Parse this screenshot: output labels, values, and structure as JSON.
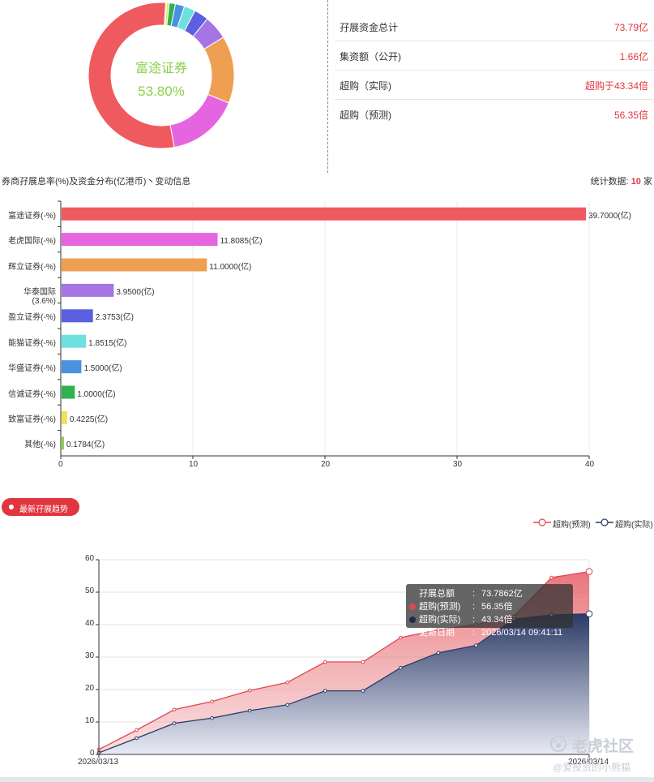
{
  "donut": {
    "center_name": "富途证券",
    "center_pct": "53.80%",
    "slices": [
      {
        "name": "富途证券",
        "value": 39.7,
        "color": "#ee5a5e"
      },
      {
        "name": "老虎国际",
        "value": 11.8085,
        "color": "#e565e0"
      },
      {
        "name": "辉立证券",
        "value": 11.0,
        "color": "#ee9f52"
      },
      {
        "name": "华泰国际",
        "value": 3.95,
        "color": "#a674e4"
      },
      {
        "name": "盈立证券",
        "value": 2.3753,
        "color": "#5c5fe0"
      },
      {
        "name": "能猫证券",
        "value": 1.8515,
        "color": "#6fe0e0"
      },
      {
        "name": "华盛证券",
        "value": 1.5,
        "color": "#4a92e0"
      },
      {
        "name": "信诚证券",
        "value": 1.0,
        "color": "#2fb24f"
      },
      {
        "name": "致富证券",
        "value": 0.4225,
        "color": "#ece35a"
      },
      {
        "name": "其他",
        "value": 0.1784,
        "color": "#8cd14b"
      }
    ]
  },
  "summary": [
    {
      "label": "孖展资金总计",
      "value": "73.79亿"
    },
    {
      "label": "集资额（公开)",
      "value": "1.66亿"
    },
    {
      "label": "超购（实际)",
      "value": "超购于43.34倍"
    },
    {
      "label": "超购（预测)",
      "value": "56.35倍"
    }
  ],
  "bar_section": {
    "title": "券商孖展息率(%)及资金分布(亿港币)丶变动信息",
    "stat_prefix": "统计数据: ",
    "stat_count": "10",
    "stat_suffix": " 家"
  },
  "trend": {
    "pill_label": "最新孖展趋势",
    "legend_predicted": "超购(预测)",
    "legend_actual": "超购(实际)",
    "tooltip": {
      "row1_key": "孖展总额",
      "row1_val": "73.7862亿",
      "row2_key": "超购(预测)",
      "row2_val": "56.35倍",
      "row3_key": "超购(实际)",
      "row3_val": "43.34倍",
      "row4_key": "更新日期",
      "row4_val": "2026/03/14 09:41:11",
      "colon": ":"
    }
  },
  "watermark": {
    "brand": "老虎社区",
    "handle": "@爱投资的小熊猫"
  },
  "chart_data": [
    {
      "type": "bar",
      "orientation": "horizontal",
      "categories": [
        "富途证券(-%)",
        "老虎国际(-%)",
        "辉立证券(-%)",
        "华泰国际(3.6%)",
        "盈立证券(-%)",
        "能猫证券(-%)",
        "华盛证券(-%)",
        "信诚证券(-%)",
        "致富证券(-%)",
        "其他(-%)"
      ],
      "values": [
        39.7,
        11.8085,
        11.0,
        3.95,
        2.3753,
        1.8515,
        1.5,
        1.0,
        0.4225,
        0.1784
      ],
      "value_labels": [
        "39.7000(亿)",
        "11.8085(亿)",
        "11.0000(亿)",
        "3.9500(亿)",
        "2.3753(亿)",
        "1.8515(亿)",
        "1.5000(亿)",
        "1.0000(亿)",
        "0.4225(亿)",
        "0.1784(亿)"
      ],
      "colors": [
        "#ee5a5e",
        "#e565e0",
        "#ee9f52",
        "#a674e4",
        "#5c5fe0",
        "#6fe0e0",
        "#4a92e0",
        "#2fb24f",
        "#ece35a",
        "#8cd14b"
      ],
      "xlim": [
        0,
        40
      ],
      "xticks": [
        0,
        10,
        20,
        30,
        40
      ],
      "grid": true
    },
    {
      "type": "area",
      "x_start_label": "2026/03/13",
      "x_end_label": "2026/03/14",
      "ylim": [
        0,
        60
      ],
      "yticks": [
        0,
        10,
        20,
        30,
        40,
        50,
        60
      ],
      "grid": true,
      "series": [
        {
          "name": "超购(预测)",
          "color": "#e1474f",
          "values": [
            1.5,
            7.5,
            13.8,
            16.3,
            19.7,
            22.2,
            28.5,
            28.5,
            36.0,
            38.4,
            40.0,
            42.5,
            54.5,
            56.35
          ]
        },
        {
          "name": "超购(实际)",
          "color": "#2b3a66",
          "values": [
            0.5,
            5.0,
            9.6,
            11.2,
            13.5,
            15.3,
            19.6,
            19.6,
            26.7,
            31.3,
            33.6,
            41.7,
            43.0,
            43.34
          ]
        }
      ]
    }
  ]
}
